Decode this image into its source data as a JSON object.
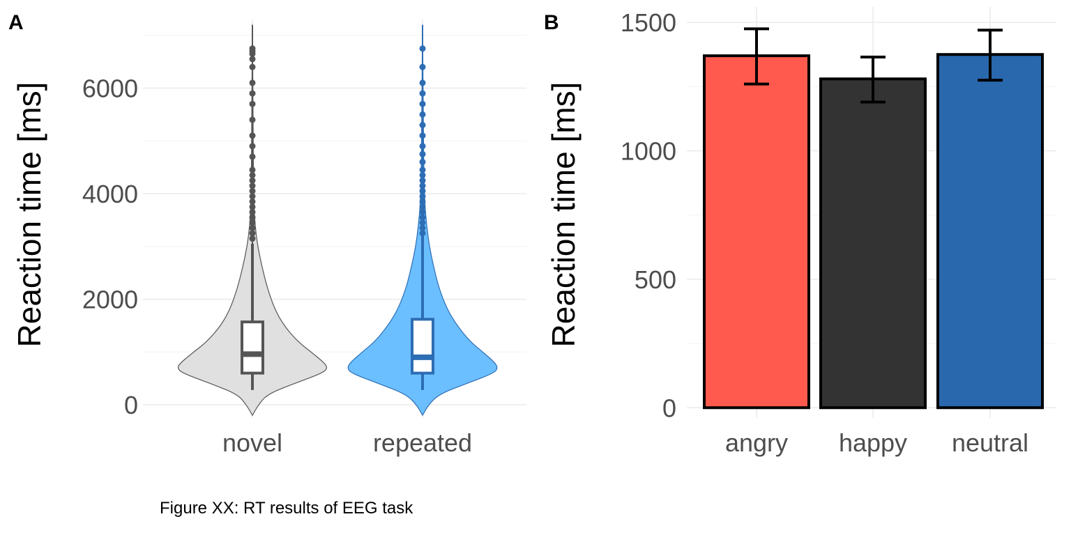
{
  "caption": "Figure XX: RT results of EEG task",
  "chart_data": [
    {
      "panel": "A",
      "type": "violin",
      "title": "",
      "xlabel": "",
      "ylabel": "Reaction time [ms]",
      "ylim": [
        -250,
        7300
      ],
      "yticks": [
        0,
        2000,
        4000,
        6000
      ],
      "ytick_labels": [
        "0",
        "2000",
        "4000",
        "6000"
      ],
      "grid": true,
      "legend": "none",
      "categories": [
        "novel",
        "repeated"
      ],
      "colors": {
        "novel": "#e0e0e0",
        "repeated": "#6bbfff"
      },
      "box_colors": {
        "novel": "#555555",
        "repeated": "#2d6db4"
      },
      "outline_colors": {
        "novel": "#555555",
        "repeated": "#2d6db4"
      },
      "box": [
        {
          "name": "novel",
          "q1": 600,
          "median": 960,
          "q3": 1570,
          "whisker_low": 280,
          "whisker_high": 3050
        },
        {
          "name": "repeated",
          "q1": 600,
          "median": 900,
          "q3": 1620,
          "whisker_low": 280,
          "whisker_high": 3200
        }
      ],
      "outliers": {
        "novel": [
          3150,
          3250,
          3350,
          3450,
          3550,
          3650,
          3750,
          3850,
          3950,
          4050,
          4150,
          4250,
          4350,
          4450,
          4700,
          4900,
          5100,
          5400,
          5700,
          5900,
          6100,
          6400,
          6550,
          6650,
          6700,
          6750
        ],
        "repeated": [
          3250,
          3350,
          3450,
          3550,
          3650,
          3750,
          3850,
          3950,
          4050,
          4150,
          4250,
          4350,
          4450,
          4600,
          4750,
          4900,
          5100,
          5300,
          5500,
          5700,
          5900,
          6100,
          6400,
          6750
        ]
      },
      "density": {
        "novel": [
          [
            -200,
            0.0
          ],
          [
            0,
            0.08
          ],
          [
            200,
            0.2
          ],
          [
            400,
            0.55
          ],
          [
            600,
            0.93
          ],
          [
            700,
            1.0
          ],
          [
            800,
            0.95
          ],
          [
            1000,
            0.78
          ],
          [
            1200,
            0.6
          ],
          [
            1500,
            0.42
          ],
          [
            1800,
            0.3
          ],
          [
            2200,
            0.2
          ],
          [
            2600,
            0.13
          ],
          [
            3000,
            0.07
          ],
          [
            3400,
            0.035
          ],
          [
            3800,
            0.02
          ],
          [
            4400,
            0.014
          ],
          [
            5000,
            0.01
          ],
          [
            6000,
            0.007
          ],
          [
            7200,
            0.0
          ]
        ],
        "repeated": [
          [
            -200,
            0.0
          ],
          [
            0,
            0.08
          ],
          [
            200,
            0.22
          ],
          [
            400,
            0.58
          ],
          [
            600,
            0.95
          ],
          [
            700,
            1.0
          ],
          [
            800,
            0.96
          ],
          [
            1000,
            0.8
          ],
          [
            1200,
            0.63
          ],
          [
            1500,
            0.46
          ],
          [
            1800,
            0.33
          ],
          [
            2200,
            0.22
          ],
          [
            2600,
            0.15
          ],
          [
            3000,
            0.09
          ],
          [
            3400,
            0.055
          ],
          [
            3800,
            0.03
          ],
          [
            4400,
            0.018
          ],
          [
            5000,
            0.012
          ],
          [
            6000,
            0.008
          ],
          [
            7200,
            0.0
          ]
        ]
      }
    },
    {
      "panel": "B",
      "type": "bar",
      "title": "",
      "xlabel": "",
      "ylabel": "Reaction time [ms]",
      "ylim": [
        -40,
        1560
      ],
      "yticks": [
        0,
        500,
        1000,
        1500
      ],
      "ytick_labels": [
        "0",
        "500",
        "1000",
        "1500"
      ],
      "grid": true,
      "legend": "none",
      "categories": [
        "angry",
        "happy",
        "neutral"
      ],
      "values": [
        1370,
        1280,
        1375
      ],
      "error_low": [
        1260,
        1190,
        1275
      ],
      "error_high": [
        1475,
        1365,
        1470
      ],
      "colors": [
        "#ff5a4d",
        "#333333",
        "#2a68ad"
      ]
    }
  ]
}
